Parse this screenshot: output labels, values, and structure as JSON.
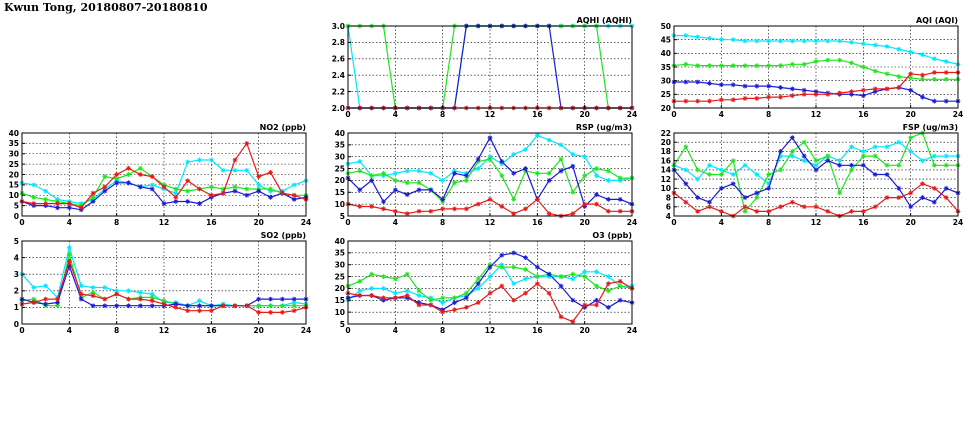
{
  "page_title": "Kwun Tong, 20180807-20180810",
  "colors": {
    "cyan": "#00e6ff",
    "green": "#1ee61e",
    "blue": "#1a1ad9",
    "red": "#e61919"
  },
  "chart_data": [
    {
      "type": "line",
      "title": "AQHI (AQHI)",
      "x": [
        0,
        1,
        2,
        3,
        4,
        5,
        6,
        7,
        8,
        9,
        10,
        11,
        12,
        13,
        14,
        15,
        16,
        17,
        18,
        19,
        20,
        21,
        22,
        23,
        24
      ],
      "xlim": [
        0,
        24
      ],
      "ylim": [
        2.0,
        3.0
      ],
      "xticks": [
        0,
        4,
        8,
        12,
        16,
        20,
        24
      ],
      "yticks": [
        "2.0",
        "2.2",
        "2.4",
        "2.6",
        "2.8",
        "3.0"
      ],
      "grid": true,
      "series": [
        {
          "color": "cyan",
          "values": [
            3,
            2,
            2,
            2,
            2,
            2,
            2,
            2,
            2,
            2,
            3,
            3,
            3,
            3,
            3,
            3,
            3,
            3,
            3,
            3,
            3,
            3,
            3,
            3,
            3
          ]
        },
        {
          "color": "green",
          "values": [
            3,
            3,
            3,
            3,
            2,
            2,
            2,
            2,
            2,
            3,
            3,
            3,
            3,
            3,
            3,
            3,
            3,
            3,
            3,
            3,
            3,
            3,
            2,
            2,
            2
          ]
        },
        {
          "color": "blue",
          "values": [
            2,
            2,
            2,
            2,
            2,
            2,
            2,
            2,
            2,
            2,
            3,
            3,
            3,
            3,
            3,
            3,
            3,
            3,
            2,
            2,
            2,
            2,
            2,
            2,
            2
          ]
        },
        {
          "color": "red",
          "values": [
            2,
            2,
            2,
            2,
            2,
            2,
            2,
            2,
            2,
            2,
            2,
            2,
            2,
            2,
            2,
            2,
            2,
            2,
            2,
            2,
            2,
            2,
            2,
            2,
            2
          ]
        }
      ]
    },
    {
      "type": "line",
      "title": "AQI (AQI)",
      "x": [
        0,
        1,
        2,
        3,
        4,
        5,
        6,
        7,
        8,
        9,
        10,
        11,
        12,
        13,
        14,
        15,
        16,
        17,
        18,
        19,
        20,
        21,
        22,
        23,
        24
      ],
      "xlim": [
        0,
        24
      ],
      "ylim": [
        20,
        50
      ],
      "xticks": [
        0,
        4,
        8,
        12,
        16,
        20,
        24
      ],
      "yticks": [
        "20",
        "25",
        "30",
        "35",
        "40",
        "45",
        "50"
      ],
      "grid": true,
      "series": [
        {
          "color": "cyan",
          "values": [
            46.5,
            46.5,
            46,
            45.5,
            45,
            45,
            44.5,
            44.5,
            44.5,
            44.5,
            44.5,
            44.5,
            44.5,
            44.5,
            44.5,
            44,
            43.5,
            43,
            42.5,
            41.5,
            40.5,
            39.5,
            38,
            37,
            36
          ]
        },
        {
          "color": "green",
          "values": [
            35.5,
            36,
            35.5,
            35.5,
            35.5,
            35.5,
            35.5,
            35.5,
            35.5,
            35.5,
            36,
            36,
            37,
            37.5,
            37.5,
            36.5,
            35,
            33.5,
            32.5,
            31.5,
            31,
            30.5,
            30.5,
            30.5,
            30.5
          ]
        },
        {
          "color": "blue",
          "values": [
            29.5,
            29.5,
            29.5,
            29,
            28.5,
            28.5,
            28,
            28,
            28,
            27.5,
            27,
            26.5,
            26,
            25.5,
            25,
            25,
            24.5,
            26,
            27,
            27.5,
            26.5,
            24,
            22.5,
            22.5,
            22.5
          ]
        },
        {
          "color": "red",
          "values": [
            22.5,
            22.5,
            22.5,
            22.5,
            23,
            23,
            23.5,
            23.5,
            24,
            24,
            24.5,
            25,
            25,
            25,
            25.5,
            26,
            26.5,
            27,
            27,
            27.5,
            32.5,
            32,
            33,
            33,
            33
          ]
        }
      ]
    },
    {
      "type": "line",
      "title": "NO2 (ppb)",
      "x": [
        0,
        1,
        2,
        3,
        4,
        5,
        6,
        7,
        8,
        9,
        10,
        11,
        12,
        13,
        14,
        15,
        16,
        17,
        18,
        19,
        20,
        21,
        22,
        23,
        24
      ],
      "xlim": [
        0,
        24
      ],
      "ylim": [
        0,
        40
      ],
      "xticks": [
        0,
        4,
        8,
        12,
        16,
        20,
        24
      ],
      "yticks": [
        "0",
        "5",
        "10",
        "15",
        "20",
        "25",
        "30",
        "35",
        "40"
      ],
      "grid": true,
      "series": [
        {
          "color": "cyan",
          "values": [
            16,
            15,
            12,
            8,
            7,
            6,
            8,
            13,
            17,
            16,
            14,
            15,
            13,
            11,
            26,
            27,
            27,
            22,
            22,
            22,
            15,
            12,
            12,
            15,
            17
          ]
        },
        {
          "color": "green",
          "values": [
            11,
            9,
            8,
            7,
            6,
            5,
            9,
            19,
            18,
            20,
            23,
            19,
            15,
            13,
            12,
            13,
            14,
            13,
            14,
            13,
            13,
            13,
            11,
            10,
            10
          ]
        },
        {
          "color": "blue",
          "values": [
            7,
            5,
            5,
            4,
            4,
            3,
            7,
            12,
            16,
            16,
            14,
            13,
            6,
            7,
            7,
            6,
            9,
            11,
            12,
            10,
            12,
            9,
            11,
            8,
            9
          ]
        },
        {
          "color": "red",
          "values": [
            7,
            6,
            6,
            6,
            6,
            4,
            11,
            14,
            20,
            23,
            20,
            19,
            14,
            9,
            17,
            13,
            10,
            11,
            27,
            35,
            19,
            21,
            11,
            10,
            8
          ]
        }
      ]
    },
    {
      "type": "line",
      "title": "RSP (ug/m3)",
      "x": [
        0,
        1,
        2,
        3,
        4,
        5,
        6,
        7,
        8,
        9,
        10,
        11,
        12,
        13,
        14,
        15,
        16,
        17,
        18,
        19,
        20,
        21,
        22,
        23,
        24
      ],
      "xlim": [
        0,
        24
      ],
      "ylim": [
        5,
        40
      ],
      "xticks": [
        0,
        4,
        8,
        12,
        16,
        20,
        24
      ],
      "yticks": [
        "5",
        "10",
        "15",
        "20",
        "25",
        "30",
        "35",
        "40"
      ],
      "grid": true,
      "series": [
        {
          "color": "cyan",
          "values": [
            27,
            28,
            22,
            22,
            23,
            24,
            24,
            23,
            20,
            24,
            23,
            25,
            30,
            27,
            31,
            33,
            39,
            37,
            35,
            31,
            30,
            22,
            20,
            20,
            21
          ]
        },
        {
          "color": "green",
          "values": [
            23,
            24,
            22,
            23,
            20,
            19,
            19,
            16,
            11,
            19,
            20,
            28,
            29,
            22,
            12,
            24,
            23,
            23,
            29,
            15,
            22,
            25,
            24,
            21,
            21
          ]
        },
        {
          "color": "blue",
          "values": [
            21,
            16,
            20,
            11,
            16,
            14,
            16,
            16,
            12,
            23,
            22,
            29,
            38,
            28,
            23,
            25,
            12,
            20,
            24,
            26,
            9,
            14,
            12,
            12,
            10
          ]
        },
        {
          "color": "red",
          "values": [
            10,
            9,
            9,
            8,
            7,
            6,
            7,
            7,
            8,
            8,
            8,
            10,
            12,
            9,
            6,
            8,
            12,
            6,
            5,
            6,
            10,
            10,
            7,
            7,
            7
          ]
        }
      ]
    },
    {
      "type": "line",
      "title": "FSP (ug/m3)",
      "x": [
        0,
        1,
        2,
        3,
        4,
        5,
        6,
        7,
        8,
        9,
        10,
        11,
        12,
        13,
        14,
        15,
        16,
        17,
        18,
        19,
        20,
        21,
        22,
        23,
        24
      ],
      "xlim": [
        0,
        24
      ],
      "ylim": [
        4,
        22
      ],
      "xticks": [
        0,
        4,
        8,
        12,
        16,
        20,
        24
      ],
      "yticks": [
        "4",
        "6",
        "8",
        "10",
        "12",
        "14",
        "16",
        "18",
        "20",
        "22"
      ],
      "grid": true,
      "series": [
        {
          "color": "cyan",
          "values": [
            15,
            14,
            12,
            15,
            14,
            13,
            15,
            13,
            11,
            17,
            17,
            16,
            15,
            17,
            16,
            19,
            18,
            19,
            19,
            20,
            18,
            16,
            17,
            17,
            17
          ]
        },
        {
          "color": "green",
          "values": [
            15,
            19,
            14,
            13,
            13,
            16,
            5,
            8,
            13,
            14,
            18,
            20,
            16,
            17,
            9,
            14,
            17,
            17,
            15,
            15,
            21,
            22,
            15,
            15,
            15
          ]
        },
        {
          "color": "blue",
          "values": [
            14,
            11,
            8,
            7,
            10,
            11,
            8,
            9,
            10,
            18,
            21,
            17,
            14,
            16,
            15,
            15,
            15,
            13,
            13,
            10,
            6,
            8,
            7,
            10,
            9
          ]
        },
        {
          "color": "red",
          "values": [
            9,
            7,
            5,
            6,
            5,
            4,
            6,
            5,
            5,
            6,
            7,
            6,
            6,
            5,
            4,
            5,
            5,
            6,
            8,
            8,
            9,
            11,
            10,
            8,
            5
          ]
        }
      ]
    },
    {
      "type": "line",
      "title": "SO2 (ppb)",
      "x": [
        0,
        1,
        2,
        3,
        4,
        5,
        6,
        7,
        8,
        9,
        10,
        11,
        12,
        13,
        14,
        15,
        16,
        17,
        18,
        19,
        20,
        21,
        22,
        23,
        24
      ],
      "xlim": [
        0,
        24
      ],
      "ylim": [
        0,
        5
      ],
      "xticks": [
        0,
        4,
        8,
        12,
        16,
        20,
        24
      ],
      "yticks": [
        "0",
        "1",
        "2",
        "3",
        "4",
        "5"
      ],
      "grid": true,
      "series": [
        {
          "color": "cyan",
          "values": [
            3.0,
            2.2,
            2.3,
            1.6,
            4.6,
            2.3,
            2.2,
            2.2,
            2.0,
            2.0,
            1.9,
            1.8,
            1.3,
            1.3,
            1.1,
            1.4,
            1.1,
            1.2,
            1.1,
            1.1,
            1.1,
            1.1,
            1.1,
            1.3,
            1.2
          ]
        },
        {
          "color": "green",
          "values": [
            1.4,
            1.5,
            1.1,
            1.1,
            4.2,
            1.6,
            1.9,
            1.5,
            1.8,
            1.5,
            1.6,
            1.6,
            1.4,
            1.2,
            1.1,
            1.1,
            1.1,
            1.1,
            1.1,
            1.1,
            1.1,
            1.1,
            1.1,
            1.1,
            1.1
          ]
        },
        {
          "color": "blue",
          "values": [
            1.5,
            1.3,
            1.2,
            1.3,
            3.5,
            1.5,
            1.1,
            1.1,
            1.1,
            1.1,
            1.1,
            1.1,
            1.1,
            1.2,
            1.1,
            1.1,
            1.1,
            1.1,
            1.1,
            1.1,
            1.5,
            1.5,
            1.5,
            1.5,
            1.5
          ]
        },
        {
          "color": "red",
          "values": [
            1.2,
            1.3,
            1.5,
            1.5,
            3.8,
            1.8,
            1.7,
            1.5,
            1.8,
            1.5,
            1.5,
            1.4,
            1.2,
            1.0,
            0.8,
            0.8,
            0.8,
            1.1,
            1.1,
            1.1,
            0.7,
            0.7,
            0.7,
            0.8,
            1.0
          ]
        }
      ]
    },
    {
      "type": "line",
      "title": "O3 (ppb)",
      "x": [
        0,
        1,
        2,
        3,
        4,
        5,
        6,
        7,
        8,
        9,
        10,
        11,
        12,
        13,
        14,
        15,
        16,
        17,
        18,
        19,
        20,
        21,
        22,
        23,
        24
      ],
      "xlim": [
        0,
        24
      ],
      "ylim": [
        5,
        40
      ],
      "xticks": [
        0,
        4,
        8,
        12,
        16,
        20,
        24
      ],
      "yticks": [
        "5",
        "10",
        "15",
        "20",
        "25",
        "30",
        "35",
        "40"
      ],
      "grid": true,
      "series": [
        {
          "color": "cyan",
          "values": [
            15,
            19,
            20,
            20,
            18,
            19,
            17,
            16,
            14,
            16,
            17,
            20,
            25,
            30,
            22,
            24,
            25,
            25,
            25,
            24,
            27,
            27,
            25,
            21,
            21
          ]
        },
        {
          "color": "green",
          "values": [
            21,
            23,
            26,
            25,
            24,
            26,
            19,
            15,
            16,
            16,
            18,
            24,
            30,
            29,
            29,
            28,
            25,
            26,
            25,
            26,
            25,
            21,
            19,
            21,
            20
          ]
        },
        {
          "color": "blue",
          "values": [
            16,
            17,
            17,
            15,
            16,
            16,
            14,
            13,
            11,
            14,
            16,
            22,
            29,
            34,
            35,
            33,
            29,
            26,
            21,
            15,
            12,
            15,
            12,
            15,
            14
          ]
        },
        {
          "color": "red",
          "values": [
            18,
            17,
            17,
            16,
            16,
            17,
            13,
            13,
            10,
            11,
            12,
            14,
            18,
            21,
            15,
            18,
            22,
            18,
            8,
            6,
            13,
            13,
            22,
            23,
            20
          ]
        }
      ]
    }
  ]
}
